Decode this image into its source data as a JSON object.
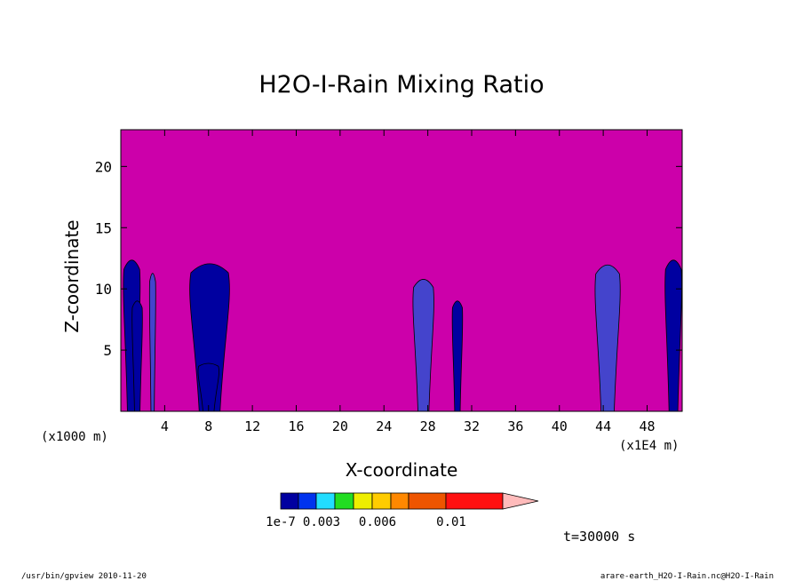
{
  "chart_data": {
    "type": "heatmap",
    "title": "H2O-I-Rain Mixing Ratio",
    "xlabel": "X-coordinate",
    "ylabel": "Z-coordinate",
    "x_unit_left": "(x1000 m)",
    "x_unit_right": "(x1E4 m)",
    "xlim": [
      0,
      51.2
    ],
    "ylim": [
      0,
      23
    ],
    "x_ticks": [
      4,
      8,
      12,
      16,
      20,
      24,
      28,
      32,
      36,
      40,
      44,
      48
    ],
    "y_ticks": [
      5,
      10,
      15,
      20
    ],
    "background_color": "#CC00AA",
    "colorbar": {
      "colors": [
        "#0000A0",
        "#0033EE",
        "#22DDFF",
        "#22DD22",
        "#EEEE00",
        "#FFCC00",
        "#FF8800",
        "#EE5500",
        "#FF1111",
        "#FF7777",
        "#FFBBBB"
      ],
      "labels": [
        "1e-7",
        "0.003",
        "0.006",
        "0.01"
      ]
    },
    "time_label": "t=30000 s",
    "cells": [
      {
        "x0": 0.2,
        "x1": 1.8,
        "top": 12.6,
        "color": "#0000A0"
      },
      {
        "x0": 1.0,
        "x1": 2.0,
        "top": 9.2,
        "color": "#0000A0"
      },
      {
        "x0": 2.6,
        "x1": 3.2,
        "top": 11.5,
        "color": "#4444CC"
      },
      {
        "x0": 6.2,
        "x1": 10.0,
        "top": 12.3,
        "color": "#0000A0"
      },
      {
        "x0": 7.0,
        "x1": 9.0,
        "top": 4.0,
        "color": "#0000A0"
      },
      {
        "x0": 26.6,
        "x1": 28.6,
        "top": 11.0,
        "color": "#4444CC"
      },
      {
        "x0": 30.2,
        "x1": 31.2,
        "top": 9.2,
        "color": "#0000A0"
      },
      {
        "x0": 43.2,
        "x1": 45.6,
        "top": 12.2,
        "color": "#4444CC"
      },
      {
        "x0": 49.6,
        "x1": 51.2,
        "top": 12.6,
        "color": "#0000A0"
      }
    ]
  },
  "footer": {
    "left": "/usr/bin/gpview  2010-11-20",
    "right": "arare-earth_H2O-I-Rain.nc@H2O-I-Rain"
  }
}
